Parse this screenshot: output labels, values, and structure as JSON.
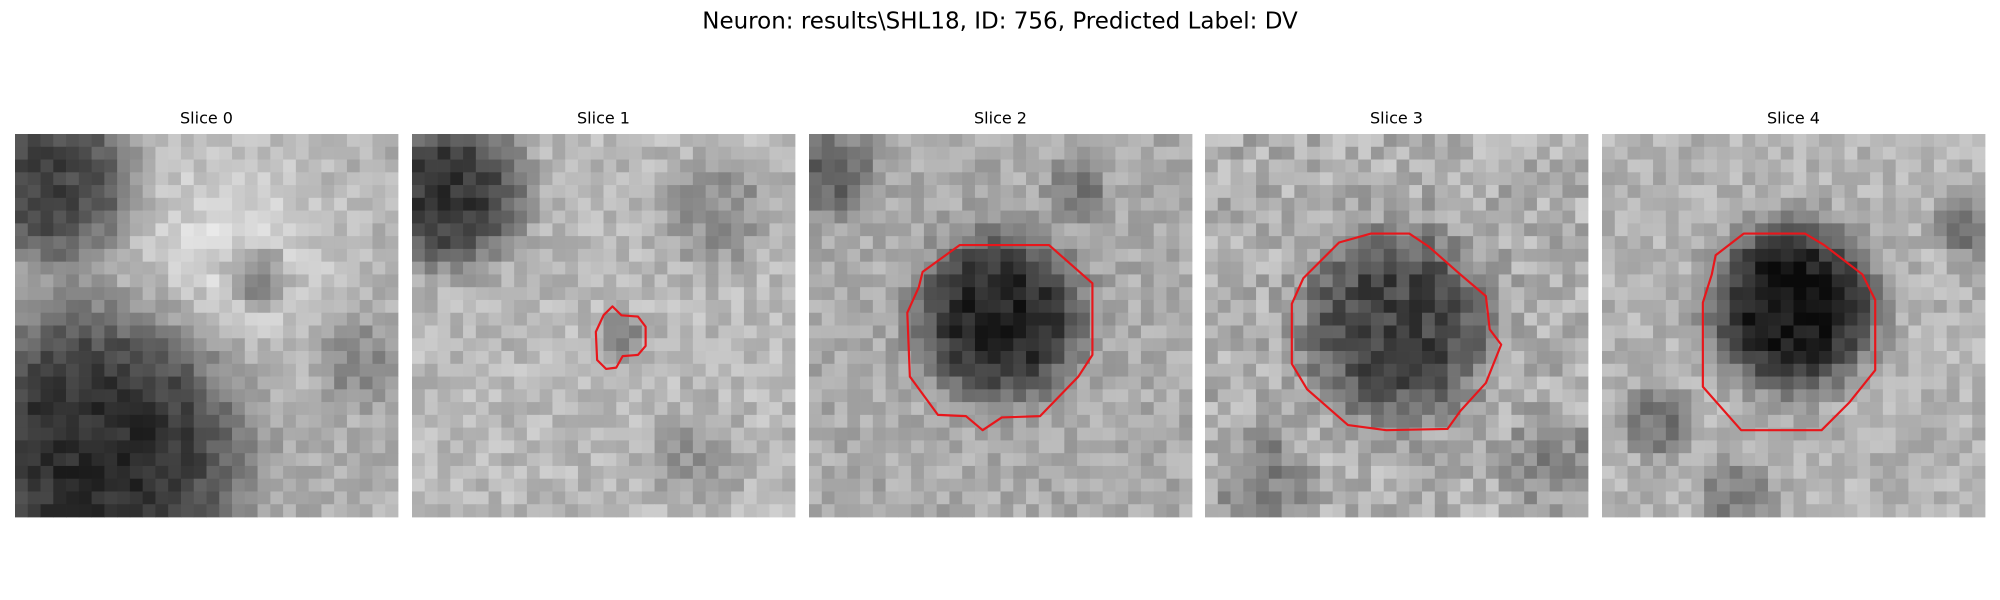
{
  "title": "Neuron: results\\SHL18, ID: 756, Predicted Label: DV",
  "panels": [
    {
      "title": "Slice 0"
    },
    {
      "title": "Slice 1"
    },
    {
      "title": "Slice 2"
    },
    {
      "title": "Slice 3"
    },
    {
      "title": "Slice 4"
    }
  ]
}
